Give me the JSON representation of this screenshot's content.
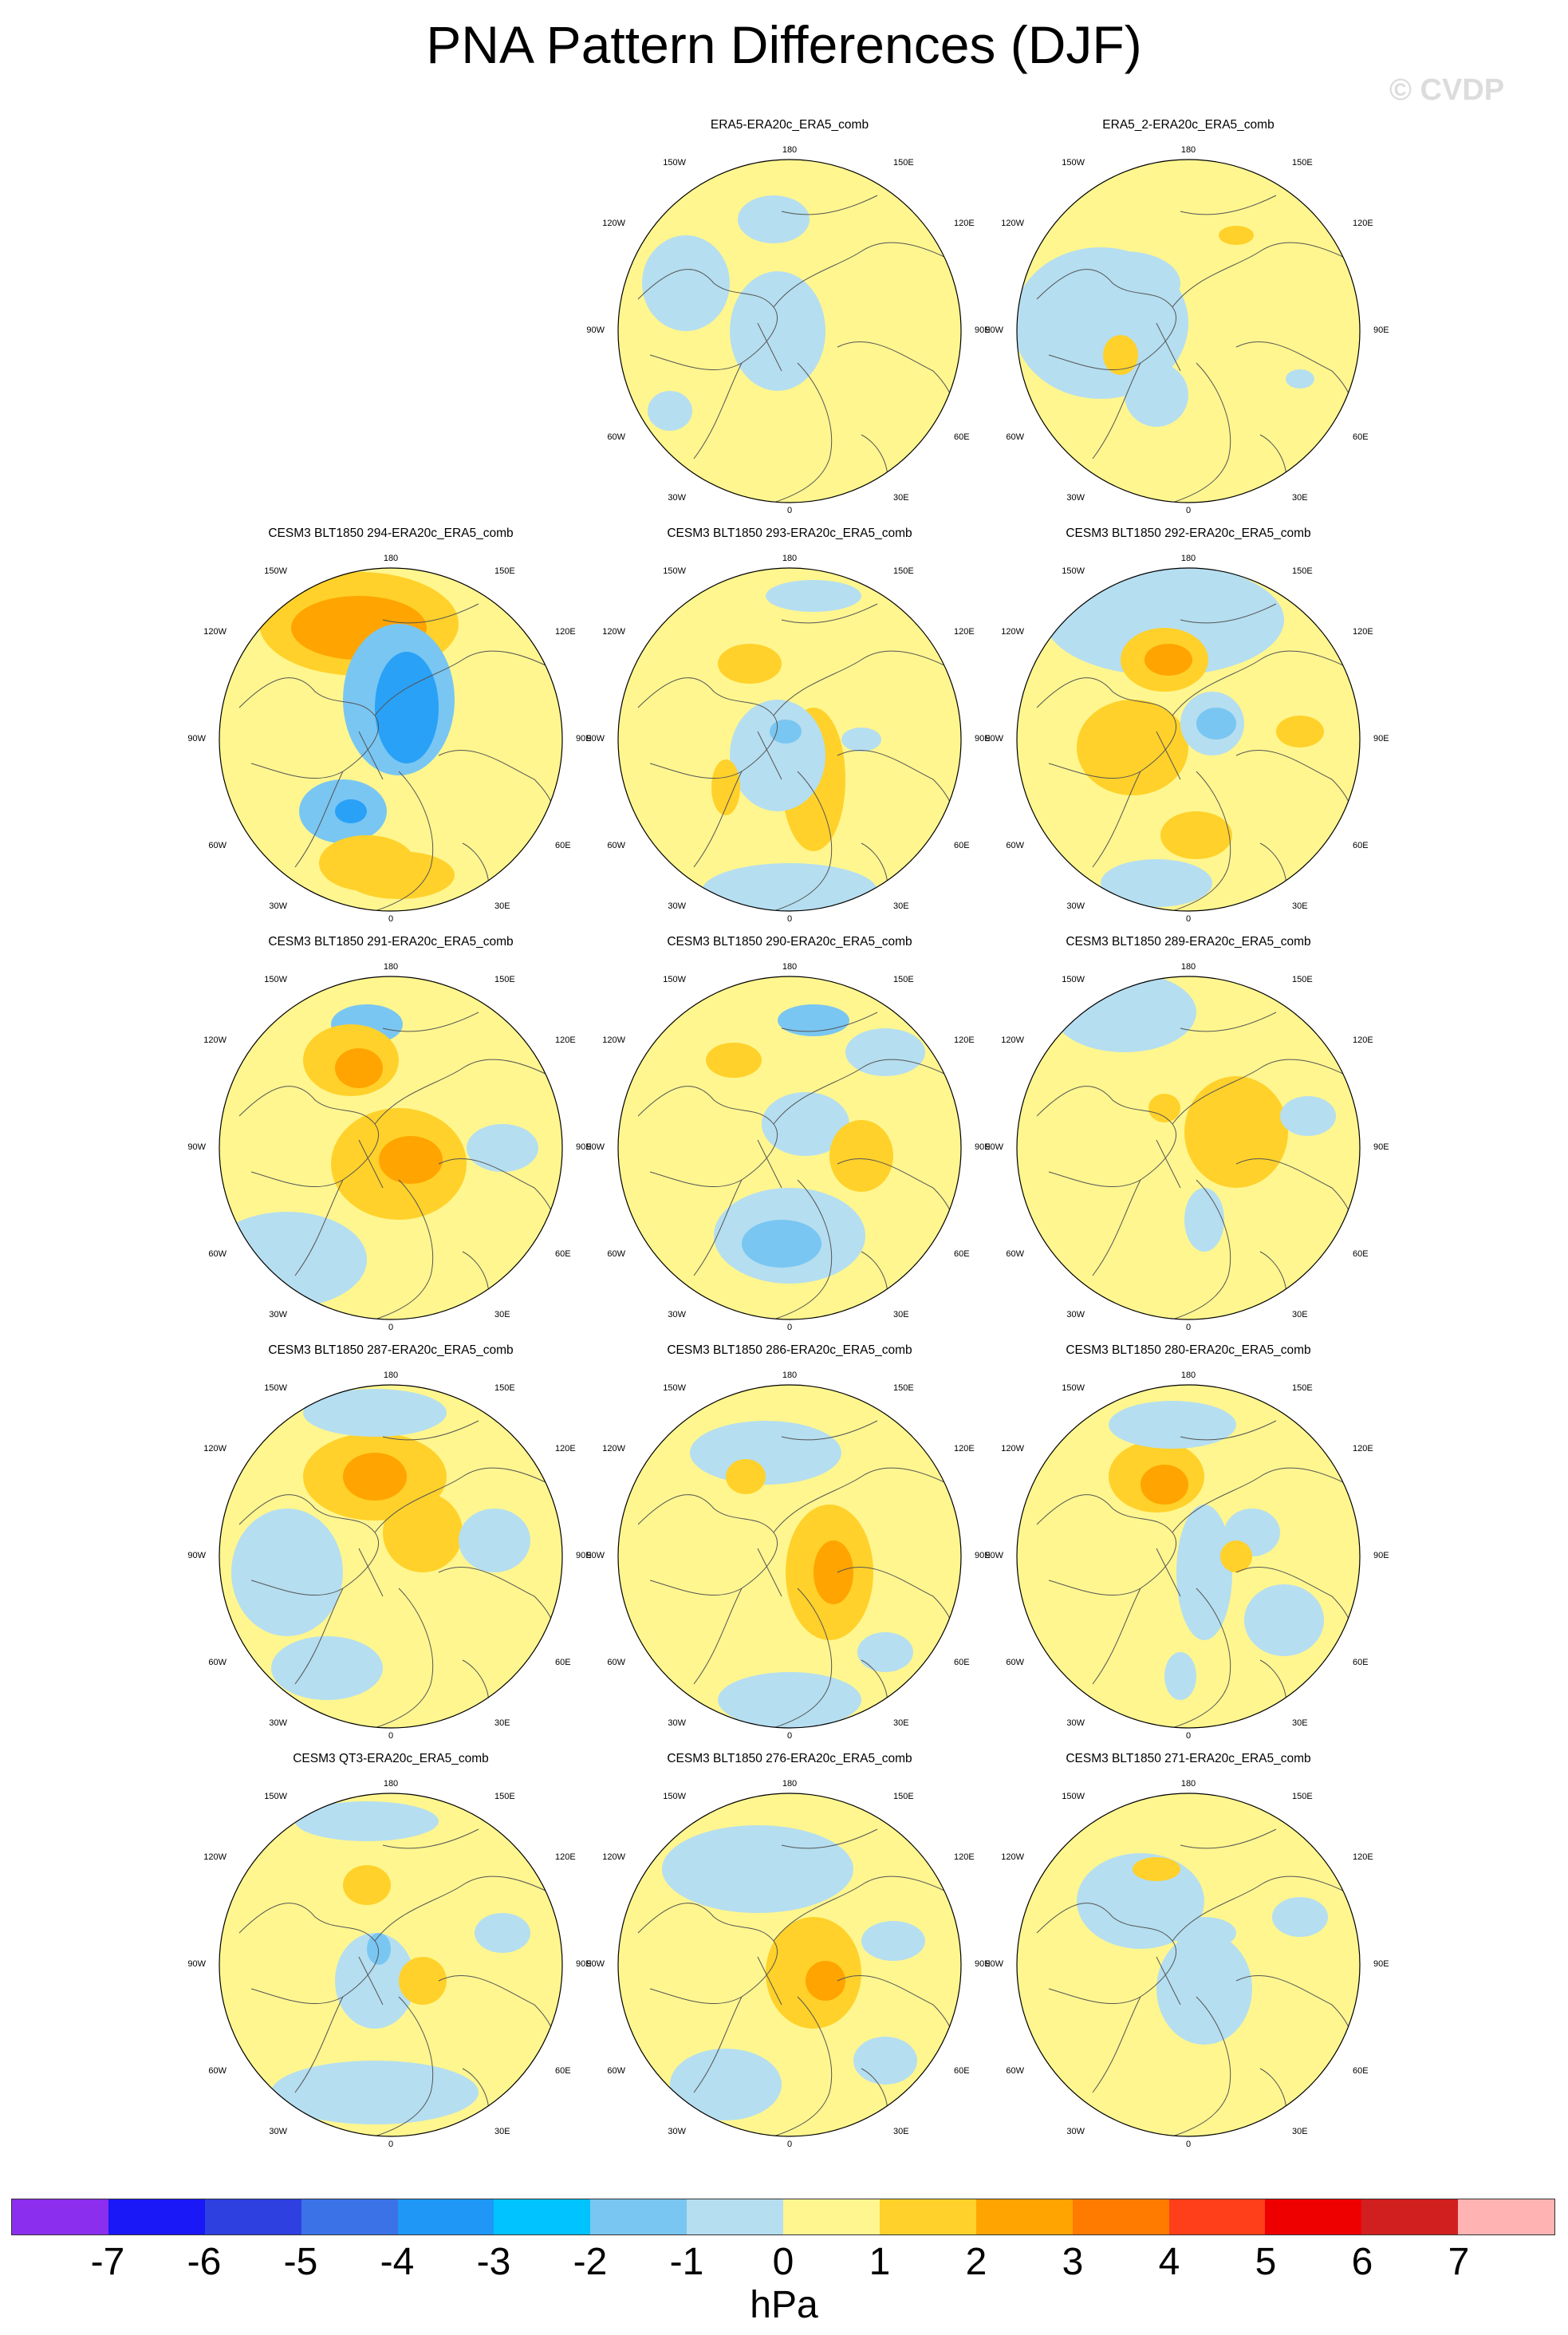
{
  "title": "PNA Pattern Differences (DJF)",
  "watermark": "© CVDP",
  "units": "hPa",
  "colors": {
    "pos1": "#fff68f",
    "pos2": "#ffd12a",
    "pos3": "#ffa400",
    "neg1": "#b5def0",
    "neg2": "#79c6f2",
    "neg3": "#29a1f7",
    "neg4": "#1e86f3"
  },
  "colorbar": {
    "colors": [
      "#8c2eed",
      "#1a18f7",
      "#2e40e0",
      "#3b72e8",
      "#1e97f7",
      "#00c3ff",
      "#79c6f2",
      "#b5def0",
      "#fff68f",
      "#ffd12a",
      "#ffa400",
      "#ff7b00",
      "#ff3f1a",
      "#ee0000",
      "#d11f1f",
      "#ffb3b3"
    ],
    "ticks": [
      "-7",
      "-6",
      "-5",
      "-4",
      "-3",
      "-2",
      "-1",
      "0",
      "1",
      "2",
      "3",
      "4",
      "5",
      "6",
      "7"
    ]
  },
  "lon_labels": {
    "top": "180",
    "p150e": "150E",
    "p120e": "120E",
    "p90e": "90E",
    "p60e": "60E",
    "p30e": "30E",
    "bottom": "0",
    "p30w": "30W",
    "p60w": "60W",
    "p90w": "90W",
    "p120w": "120W",
    "p150w": "150W"
  },
  "panels": [
    {
      "title": "ERA5-ERA20c_ERA5_comb"
    },
    {
      "title": "ERA5_2-ERA20c_ERA5_comb"
    },
    {
      "title": "CESM3 BLT1850 294-ERA20c_ERA5_comb"
    },
    {
      "title": "CESM3 BLT1850 293-ERA20c_ERA5_comb"
    },
    {
      "title": "CESM3 BLT1850 292-ERA20c_ERA5_comb"
    },
    {
      "title": "CESM3 BLT1850 291-ERA20c_ERA5_comb"
    },
    {
      "title": "CESM3 BLT1850 290-ERA20c_ERA5_comb"
    },
    {
      "title": "CESM3 BLT1850 289-ERA20c_ERA5_comb"
    },
    {
      "title": "CESM3 BLT1850 287-ERA20c_ERA5_comb"
    },
    {
      "title": "CESM3 BLT1850 286-ERA20c_ERA5_comb"
    },
    {
      "title": "CESM3 BLT1850 280-ERA20c_ERA5_comb"
    },
    {
      "title": "CESM3 QT3-ERA20c_ERA5_comb"
    },
    {
      "title": "CESM3 BLT1850 276-ERA20c_ERA5_comb"
    },
    {
      "title": "CESM3 BLT1850 271-ERA20c_ERA5_comb"
    }
  ]
}
